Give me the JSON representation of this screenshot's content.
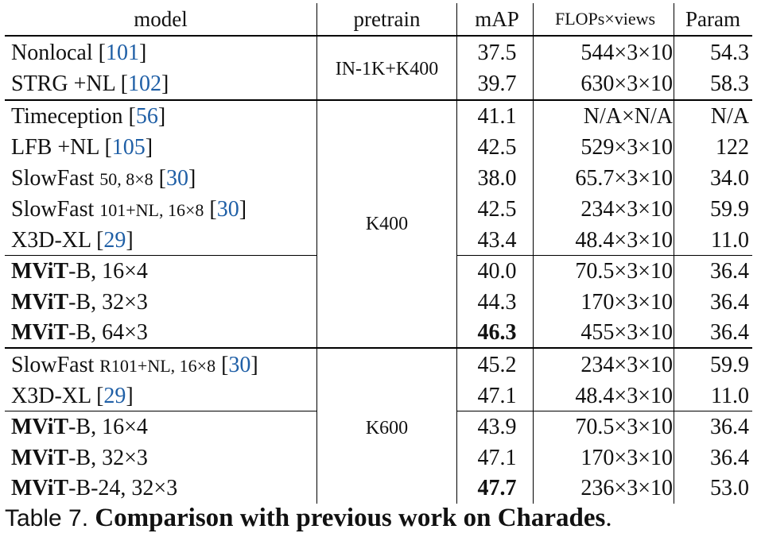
{
  "header": {
    "model": "model",
    "pretrain": "pretrain",
    "map": "mAP",
    "flops": "FLOPs×views",
    "param": "Param"
  },
  "groups": {
    "g1": "IN-1K+K400",
    "g2": "K400",
    "g3": "K600"
  },
  "rows": [
    {
      "name": "Nonlocal",
      "ref": "101",
      "map": "37.5",
      "flops": "544×3×10",
      "param": "54.3"
    },
    {
      "name": "STRG +NL",
      "ref": "102",
      "map": "39.7",
      "flops": "630×3×10",
      "param": "58.3"
    },
    {
      "name": "Timeception",
      "ref": "56",
      "map": "41.1",
      "flops": "N/A×N/A",
      "param": "N/A"
    },
    {
      "name": "LFB +NL",
      "ref": "105",
      "map": "42.5",
      "flops": "529×3×10",
      "param": "122"
    },
    {
      "name": "SlowFast",
      "cfg": "50, 8×8",
      "ref": "30",
      "map": "38.0",
      "flops": "65.7×3×10",
      "param": "34.0"
    },
    {
      "name": "SlowFast",
      "cfg": "101+NL, 16×8",
      "ref": "30",
      "map": "42.5",
      "flops": "234×3×10",
      "param": "59.9"
    },
    {
      "name": "X3D-XL",
      "ref": "29",
      "map": "43.4",
      "flops": "48.4×3×10",
      "param": "11.0"
    },
    {
      "bold": "MViT",
      "rest": "-B, 16×4",
      "map": "40.0",
      "flops": "70.5×3×10",
      "param": "36.4"
    },
    {
      "bold": "MViT",
      "rest": "-B, 32×3",
      "map": "44.3",
      "flops": "170×3×10",
      "param": "36.4"
    },
    {
      "bold": "MViT",
      "rest": "-B, 64×3",
      "map": "46.3",
      "flops": "455×3×10",
      "param": "36.4"
    },
    {
      "name": "SlowFast",
      "cfg": "R101+NL, 16×8",
      "ref": "30",
      "map": "45.2",
      "flops": "234×3×10",
      "param": "59.9"
    },
    {
      "name": "X3D-XL",
      "ref": "29",
      "map": "47.1",
      "flops": "48.4×3×10",
      "param": "11.0"
    },
    {
      "bold": "MViT",
      "rest": "-B, 16×4",
      "map": "43.9",
      "flops": "70.5×3×10",
      "param": "36.4"
    },
    {
      "bold": "MViT",
      "rest": "-B, 32×3",
      "map": "47.1",
      "flops": "170×3×10",
      "param": "36.4"
    },
    {
      "bold": "MViT",
      "rest": "-B-24, 32×3",
      "map": "47.7",
      "flops": "236×3×10",
      "param": "53.0"
    }
  ],
  "caption": {
    "label": "Table 7.",
    "title": "Comparison with previous work on Charades",
    "end": "."
  }
}
